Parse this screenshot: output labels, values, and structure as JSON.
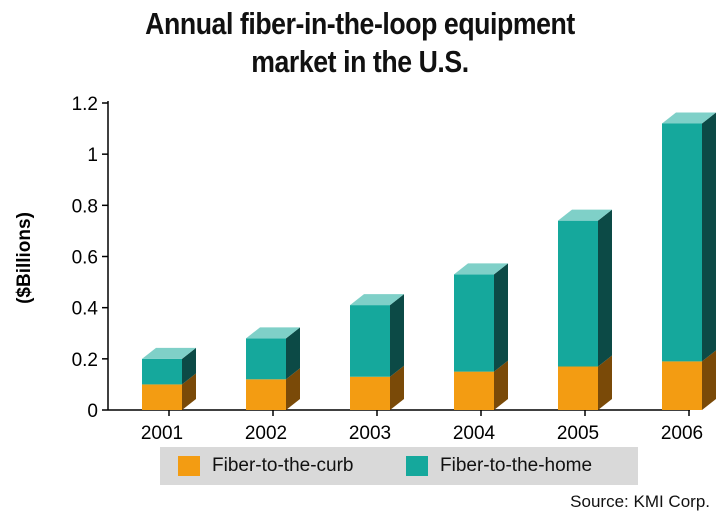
{
  "chart_data": {
    "type": "bar",
    "stacked": true,
    "three_d": true,
    "title_lines": [
      "Annual fiber-in-the-loop equipment",
      "market in the U.S."
    ],
    "xlabel": "",
    "ylabel": "($Billions)",
    "categories": [
      "2001",
      "2002",
      "2003",
      "2004",
      "2005",
      "2006"
    ],
    "ylim": [
      0,
      1.2
    ],
    "yticks": [
      "0",
      "0.2",
      "0.4",
      "0.6",
      "0.8",
      "1",
      "1.2"
    ],
    "ytick_values": [
      0,
      0.2,
      0.4,
      0.6,
      0.8,
      1.0,
      1.2
    ],
    "grid": false,
    "legend_position": "bottom",
    "series": [
      {
        "name": "Fiber-to-the-curb",
        "color": "#f39c12",
        "side_color": "#7a4a08",
        "values": [
          0.1,
          0.12,
          0.13,
          0.15,
          0.17,
          0.19
        ]
      },
      {
        "name": "Fiber-to-the-home",
        "color": "#15a89c",
        "side_color": "#0c4a46",
        "top_color": "#7fd0c8",
        "values": [
          0.1,
          0.16,
          0.28,
          0.38,
          0.57,
          0.93
        ]
      }
    ],
    "source": "Source: KMI Corp."
  }
}
